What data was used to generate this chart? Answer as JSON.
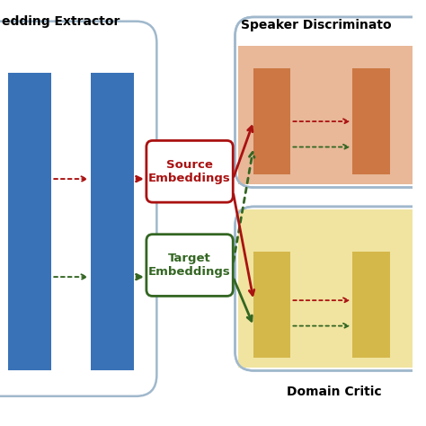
{
  "bg_color": "#ffffff",
  "title_speaker": "Speaker Discriminato",
  "title_domain": "Domain Critic",
  "title_extractor": "edding Extractor",
  "source_label": "Source\nEmbeddings",
  "target_label": "Target\nEmbeddings",
  "blue_bar_color": "#3a72b8",
  "orange_bar_color": "#cc7744",
  "orange_bg": "#e8b898",
  "yellow_bar_color": "#d4b84a",
  "yellow_bg": "#f0e4a0",
  "extractor_box_edge": "#a0b8cc",
  "discriminator_box_edge": "#a0b8cc",
  "source_box_color": "#aa1111",
  "target_box_color": "#336622",
  "red_arrow": "#aa1111",
  "green_arrow": "#336622",
  "font_size_title": 10,
  "font_size_label": 9.5
}
